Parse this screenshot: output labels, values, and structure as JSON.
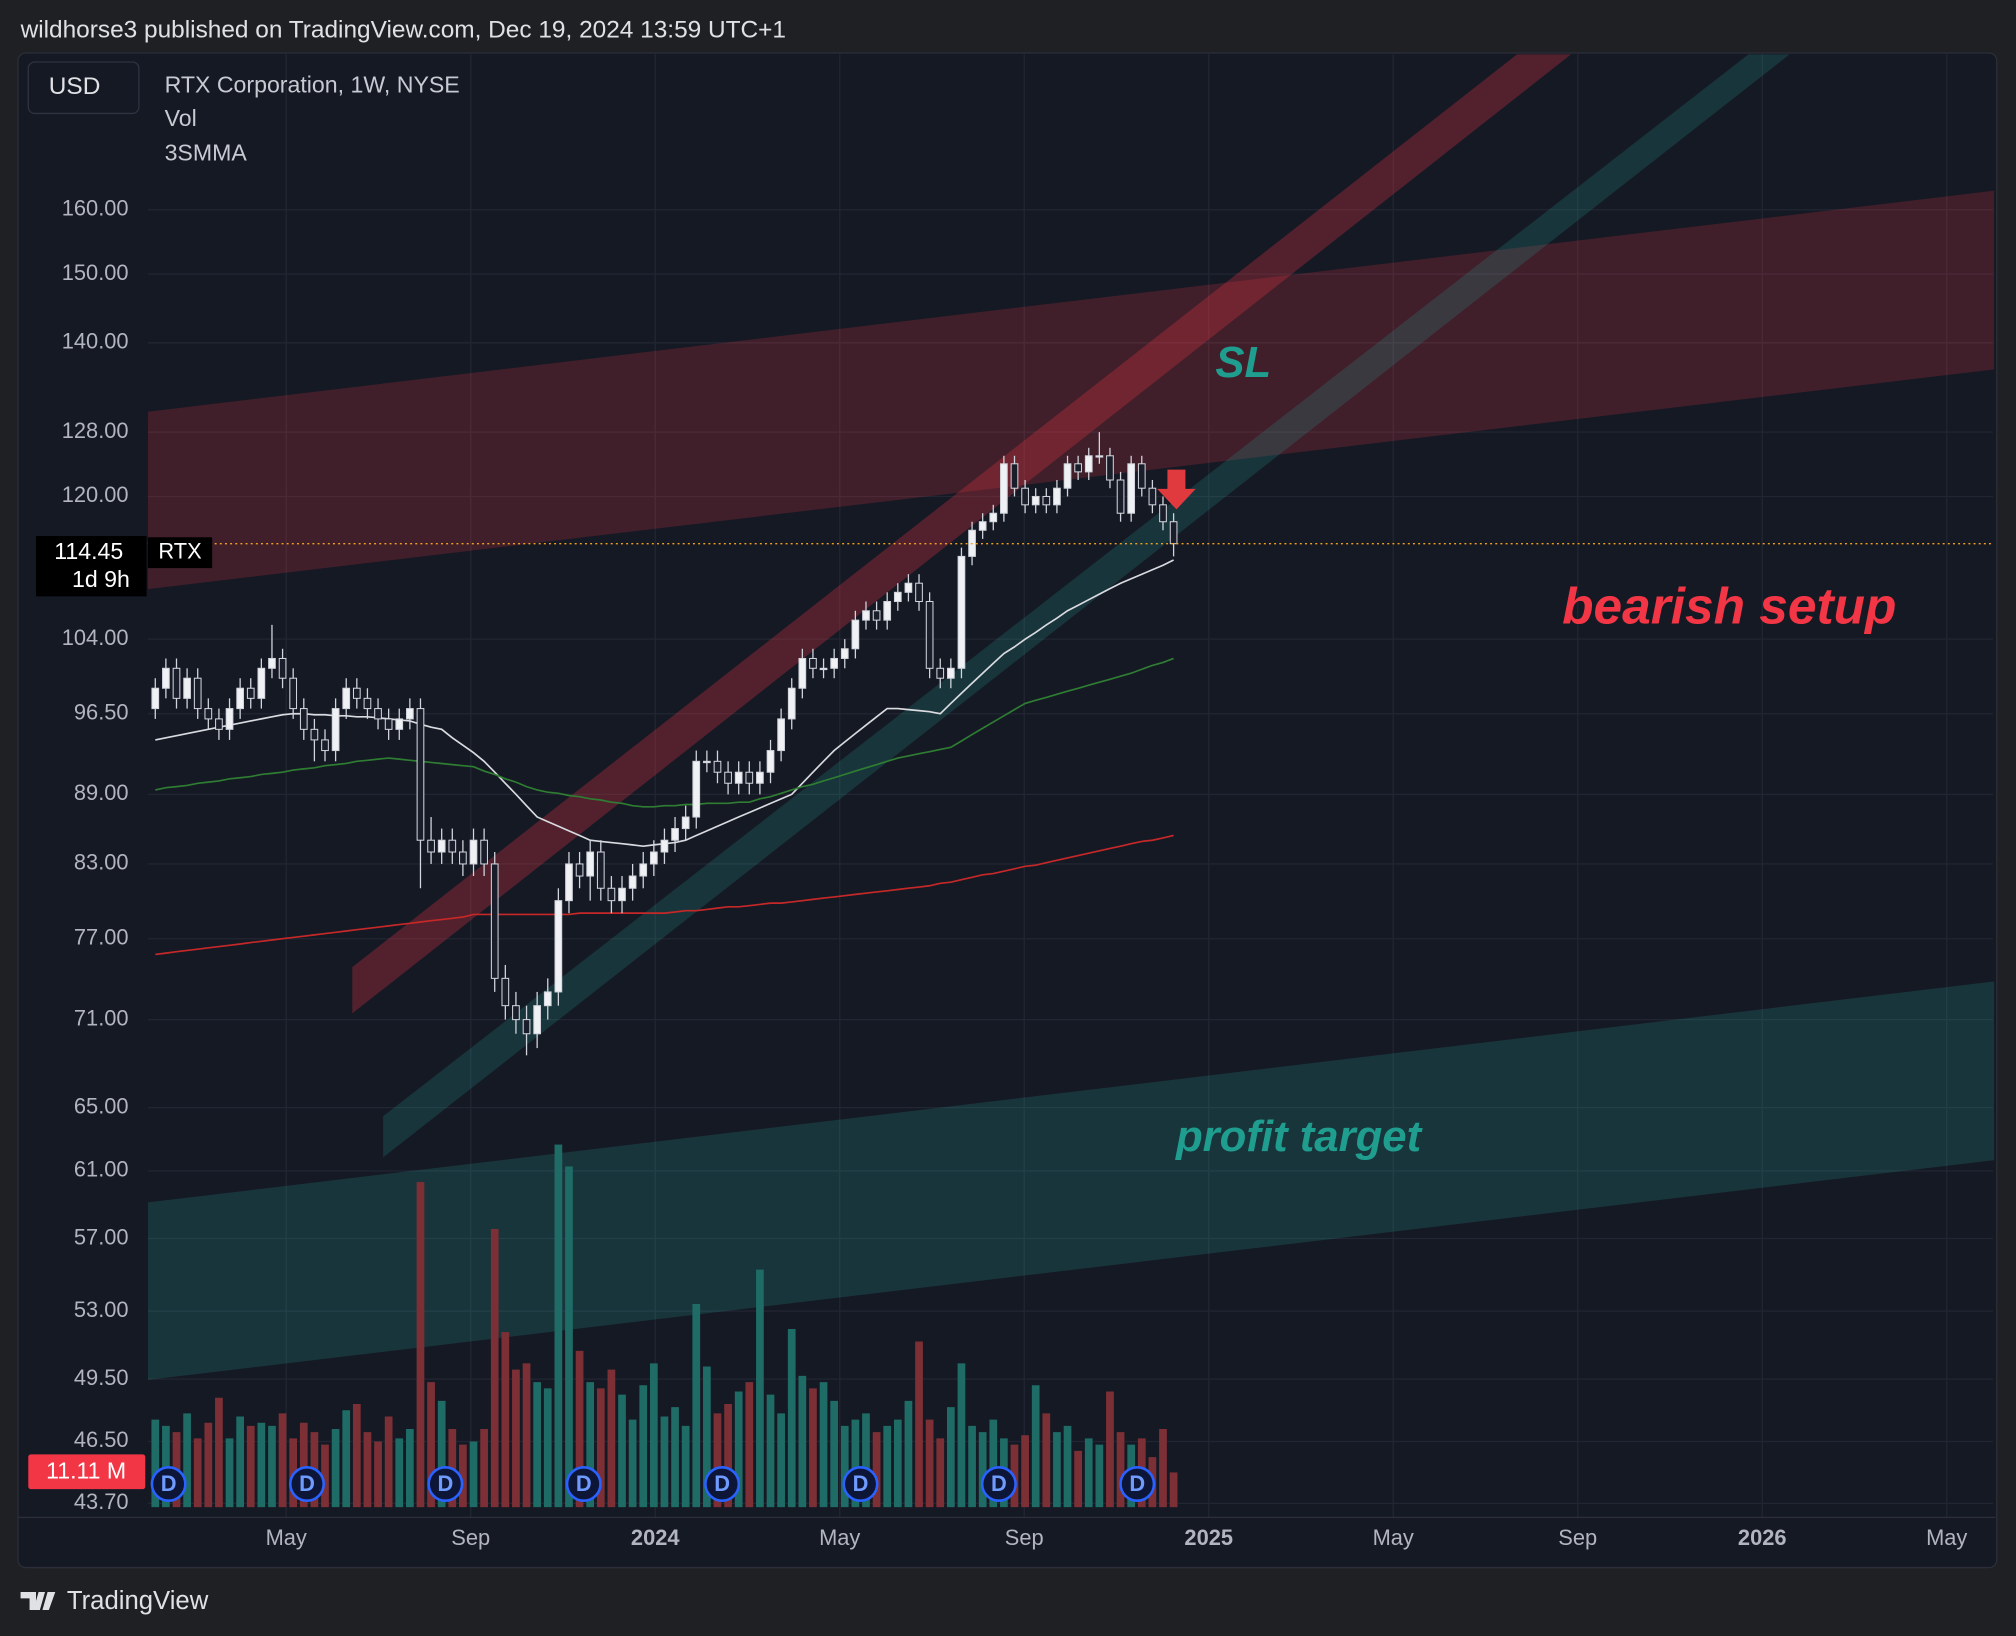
{
  "header": {
    "publisher": "wildhorse3 published on TradingView.com, Dec 19, 2024 13:59 UTC+1",
    "currency_button": "USD",
    "footer_brand": "TradingView"
  },
  "chart_data": {
    "type": "candlestick",
    "title": "RTX Corporation, 1W, NYSE",
    "indicator_label": "3SMMA",
    "log_scale": true,
    "grid": true,
    "ylim": [
      43.2,
      187
    ],
    "yticks": [
      {
        "value": 160,
        "label": "160.00"
      },
      {
        "value": 150,
        "label": "150.00"
      },
      {
        "value": 140,
        "label": "140.00"
      },
      {
        "value": 128,
        "label": "128.00"
      },
      {
        "value": 120,
        "label": "120.00"
      },
      {
        "value": 104,
        "label": "104.00"
      },
      {
        "value": 96.5,
        "label": "96.50"
      },
      {
        "value": 89,
        "label": "89.00"
      },
      {
        "value": 83,
        "label": "83.00"
      },
      {
        "value": 77,
        "label": "77.00"
      },
      {
        "value": 71,
        "label": "71.00"
      },
      {
        "value": 65,
        "label": "65.00"
      },
      {
        "value": 61,
        "label": "61.00"
      },
      {
        "value": 57,
        "label": "57.00"
      },
      {
        "value": 53,
        "label": "53.00"
      },
      {
        "value": 49.5,
        "label": "49.50"
      },
      {
        "value": 46.5,
        "label": "46.50"
      },
      {
        "value": 43.7,
        "label": "43.70"
      }
    ],
    "xlim": [
      "2023-02",
      "2026-06"
    ],
    "xticks": [
      {
        "value": "2023-05",
        "label": "May"
      },
      {
        "value": "2023-09",
        "label": "Sep"
      },
      {
        "value": "2024-01",
        "label": "2024"
      },
      {
        "value": "2024-05",
        "label": "May"
      },
      {
        "value": "2024-09",
        "label": "Sep"
      },
      {
        "value": "2025-01",
        "label": "2025"
      },
      {
        "value": "2025-05",
        "label": "May"
      },
      {
        "value": "2025-09",
        "label": "Sep"
      },
      {
        "value": "2026-01",
        "label": "2026"
      },
      {
        "value": "2026-05",
        "label": "May"
      }
    ],
    "symbol": "RTX",
    "last_price": 114.45,
    "countdown": "1d 9h",
    "up_color": "#f0f1f4",
    "down_color": "#1a1e2a",
    "wick_color": "#d1d4dc",
    "candles": {
      "open": [
        97,
        99,
        101,
        98,
        100,
        97,
        96,
        95,
        97,
        99,
        98,
        101,
        102,
        100,
        97,
        95,
        94,
        93,
        97,
        99,
        98,
        97,
        96,
        95,
        96,
        97,
        85,
        84,
        85,
        84,
        83,
        85,
        83,
        74,
        72,
        71,
        70,
        72,
        73,
        80,
        83,
        82,
        84,
        81,
        80,
        81,
        82,
        83,
        84,
        85,
        86,
        87,
        92,
        92,
        91,
        90,
        91,
        90,
        91,
        93,
        96,
        99,
        102,
        101,
        101,
        102,
        103,
        106,
        107,
        106,
        108,
        109,
        110,
        108,
        101,
        100,
        101,
        113,
        116,
        117,
        118,
        124,
        121,
        119,
        120,
        119,
        121,
        124,
        123,
        125,
        125,
        122,
        118,
        124,
        121,
        119,
        117
      ],
      "high": [
        100,
        102,
        102,
        101,
        101,
        98,
        97,
        98,
        100,
        100,
        102,
        105.5,
        103,
        101,
        98,
        96,
        95,
        98,
        100,
        100,
        99,
        98,
        97,
        97,
        98,
        98,
        87,
        86,
        86,
        85,
        86,
        86,
        84,
        75,
        73,
        72,
        73,
        74,
        81,
        84,
        84,
        85,
        85,
        82,
        82,
        83,
        84,
        85,
        86,
        87,
        88,
        93,
        93,
        93,
        92,
        92,
        92,
        92,
        94,
        97,
        100,
        103,
        103,
        102,
        103,
        104,
        107,
        108,
        108,
        109,
        110,
        111,
        111,
        109,
        102,
        102,
        114,
        117,
        118,
        119,
        125,
        125,
        122,
        121,
        121,
        122,
        125,
        125,
        126,
        128,
        126,
        123,
        125,
        125,
        122,
        120,
        118
      ],
      "low": [
        96,
        98,
        97,
        97,
        96,
        95,
        94,
        94,
        96,
        97,
        97,
        100,
        99,
        96,
        94,
        92,
        92,
        92,
        96,
        97,
        96,
        95,
        94,
        94,
        95,
        81,
        83,
        83,
        83,
        82,
        82,
        82,
        73,
        71,
        70,
        68.5,
        69,
        71,
        72,
        79,
        81,
        80,
        80,
        79,
        79,
        80,
        81,
        82,
        83,
        84,
        85,
        86,
        91,
        90,
        89,
        89,
        89,
        89,
        90,
        92,
        95,
        98,
        100,
        100,
        100,
        101,
        102,
        105,
        105,
        105,
        107,
        108,
        107,
        100,
        99,
        99,
        100,
        112,
        115,
        116,
        117,
        120,
        118,
        118,
        118,
        118,
        120,
        122,
        122,
        124,
        121,
        117,
        117,
        120,
        118,
        116,
        113
      ],
      "close": [
        99,
        101,
        98,
        100,
        97,
        96,
        95,
        97,
        99,
        98,
        101,
        102,
        100,
        97,
        95,
        94,
        93,
        97,
        99,
        98,
        97,
        96,
        95,
        96,
        97,
        85,
        84,
        85,
        84,
        83,
        85,
        83,
        74,
        72,
        71,
        70,
        72,
        73,
        80,
        83,
        82,
        84,
        81,
        80,
        81,
        82,
        83,
        84,
        85,
        86,
        87,
        92,
        92,
        91,
        90,
        91,
        90,
        91,
        93,
        96,
        99,
        102,
        101,
        101,
        102,
        103,
        106,
        107,
        106,
        108,
        109,
        110,
        108,
        101,
        100,
        101,
        113,
        116,
        117,
        118,
        124,
        121,
        119,
        120,
        119,
        121,
        124,
        123,
        125,
        125,
        122,
        118,
        124,
        121,
        119,
        117,
        114.45
      ]
    },
    "moving_averages": [
      {
        "color": "#d9dbe0",
        "values": [
          94,
          94.2,
          94.4,
          94.6,
          94.8,
          95,
          95.2,
          95.4,
          95.6,
          95.8,
          96,
          96.2,
          96.4,
          96.5,
          96.5,
          96.4,
          96.4,
          96.3,
          96.3,
          96.2,
          96.2,
          96.1,
          96,
          95.9,
          95.8,
          95.5,
          95.2,
          95,
          94.2,
          93.5,
          92.8,
          92,
          91,
          90,
          89,
          88,
          87,
          86.6,
          86.2,
          85.8,
          85.4,
          85,
          84.9,
          84.8,
          84.7,
          84.6,
          84.5,
          84.6,
          84.7,
          84.8,
          85,
          85.4,
          85.8,
          86.2,
          86.6,
          87,
          87.4,
          87.8,
          88.2,
          88.6,
          89,
          90,
          91,
          92,
          93,
          93.8,
          94.6,
          95.4,
          96.2,
          97,
          97,
          96.9,
          96.8,
          96.7,
          96.5,
          97.5,
          98.5,
          99.5,
          100.5,
          101.5,
          102.5,
          103.2,
          104,
          104.7,
          105.5,
          106.2,
          107,
          107.6,
          108.2,
          108.8,
          109.4,
          110,
          110.5,
          111,
          111.5,
          112,
          112.6
        ]
      },
      {
        "color": "#2e7d32",
        "values": [
          89.4,
          89.6,
          89.7,
          89.8,
          90,
          90.1,
          90.2,
          90.4,
          90.5,
          90.6,
          90.8,
          90.9,
          91,
          91.2,
          91.3,
          91.4,
          91.6,
          91.7,
          91.8,
          92,
          92.1,
          92.2,
          92.3,
          92.2,
          92.1,
          92,
          91.9,
          91.8,
          91.7,
          91.6,
          91.5,
          91.1,
          90.8,
          90.4,
          90.1,
          89.7,
          89.4,
          89.2,
          89.1,
          88.9,
          88.8,
          88.6,
          88.5,
          88.3,
          88.2,
          88,
          87.9,
          87.9,
          88,
          88,
          88.1,
          88.1,
          88.2,
          88.2,
          88.2,
          88.3,
          88.3,
          88.6,
          88.8,
          89.1,
          89.4,
          89.7,
          89.9,
          90.2,
          90.5,
          90.8,
          91.1,
          91.4,
          91.7,
          92,
          92.3,
          92.5,
          92.7,
          92.9,
          93.1,
          93.3,
          93.9,
          94.5,
          95.1,
          95.7,
          96.3,
          96.9,
          97.5,
          97.8,
          98.1,
          98.4,
          98.7,
          99,
          99.3,
          99.6,
          99.9,
          100.2,
          100.5,
          100.9,
          101.3,
          101.6,
          102
        ]
      },
      {
        "color": "#c62828",
        "values": [
          75.8,
          75.9,
          76,
          76.1,
          76.2,
          76.3,
          76.4,
          76.5,
          76.6,
          76.7,
          76.8,
          76.9,
          77,
          77.1,
          77.2,
          77.3,
          77.4,
          77.5,
          77.6,
          77.7,
          77.8,
          77.9,
          78,
          78.1,
          78.2,
          78.3,
          78.4,
          78.5,
          78.6,
          78.7,
          78.9,
          78.9,
          78.9,
          78.9,
          78.9,
          78.9,
          78.9,
          78.9,
          78.9,
          78.9,
          79,
          79,
          79,
          79,
          79,
          79,
          79,
          79,
          79,
          79.1,
          79.2,
          79.2,
          79.3,
          79.4,
          79.5,
          79.5,
          79.6,
          79.7,
          79.8,
          79.8,
          79.9,
          80,
          80.1,
          80.2,
          80.3,
          80.4,
          80.5,
          80.6,
          80.7,
          80.8,
          80.9,
          81,
          81.1,
          81.2,
          81.4,
          81.5,
          81.7,
          81.9,
          82.1,
          82.2,
          82.4,
          82.6,
          82.8,
          82.9,
          83.1,
          83.3,
          83.5,
          83.7,
          83.9,
          84.1,
          84.3,
          84.5,
          84.7,
          84.9,
          85,
          85.2,
          85.4
        ]
      }
    ],
    "volume": {
      "label": "Vol",
      "up_color": "#1f6b66",
      "down_color": "#7c3036",
      "last_label": "11.11 M",
      "values": [
        28,
        26,
        24,
        30,
        22,
        27,
        35,
        22,
        29,
        26,
        27,
        26,
        30,
        22,
        27,
        24,
        20,
        25,
        31,
        33,
        24,
        21,
        29,
        22,
        25,
        104,
        40,
        34,
        25,
        20,
        21,
        25,
        89,
        56,
        44,
        46,
        40,
        38,
        116,
        109,
        50,
        40,
        38,
        44,
        36,
        28,
        39,
        46,
        29,
        32,
        26,
        65,
        45,
        30,
        33,
        37,
        40,
        76,
        36,
        30,
        57,
        42,
        38,
        40,
        34,
        26,
        28,
        30,
        24,
        26,
        28,
        34,
        53,
        28,
        22,
        32,
        46,
        26,
        24,
        28,
        22,
        20,
        23,
        39,
        30,
        24,
        26,
        18,
        22,
        20,
        37,
        24,
        20,
        22,
        16,
        25,
        11.11
      ]
    },
    "dividends": {
      "label": "D",
      "months": [
        "2023-02",
        "2023-05",
        "2023-08",
        "2023-11",
        "2024-02",
        "2024-05",
        "2024-08",
        "2024-11"
      ]
    },
    "annotations": [
      {
        "text": "SL"
      },
      {
        "text": "bearish setup"
      },
      {
        "text": "profit target"
      }
    ]
  }
}
